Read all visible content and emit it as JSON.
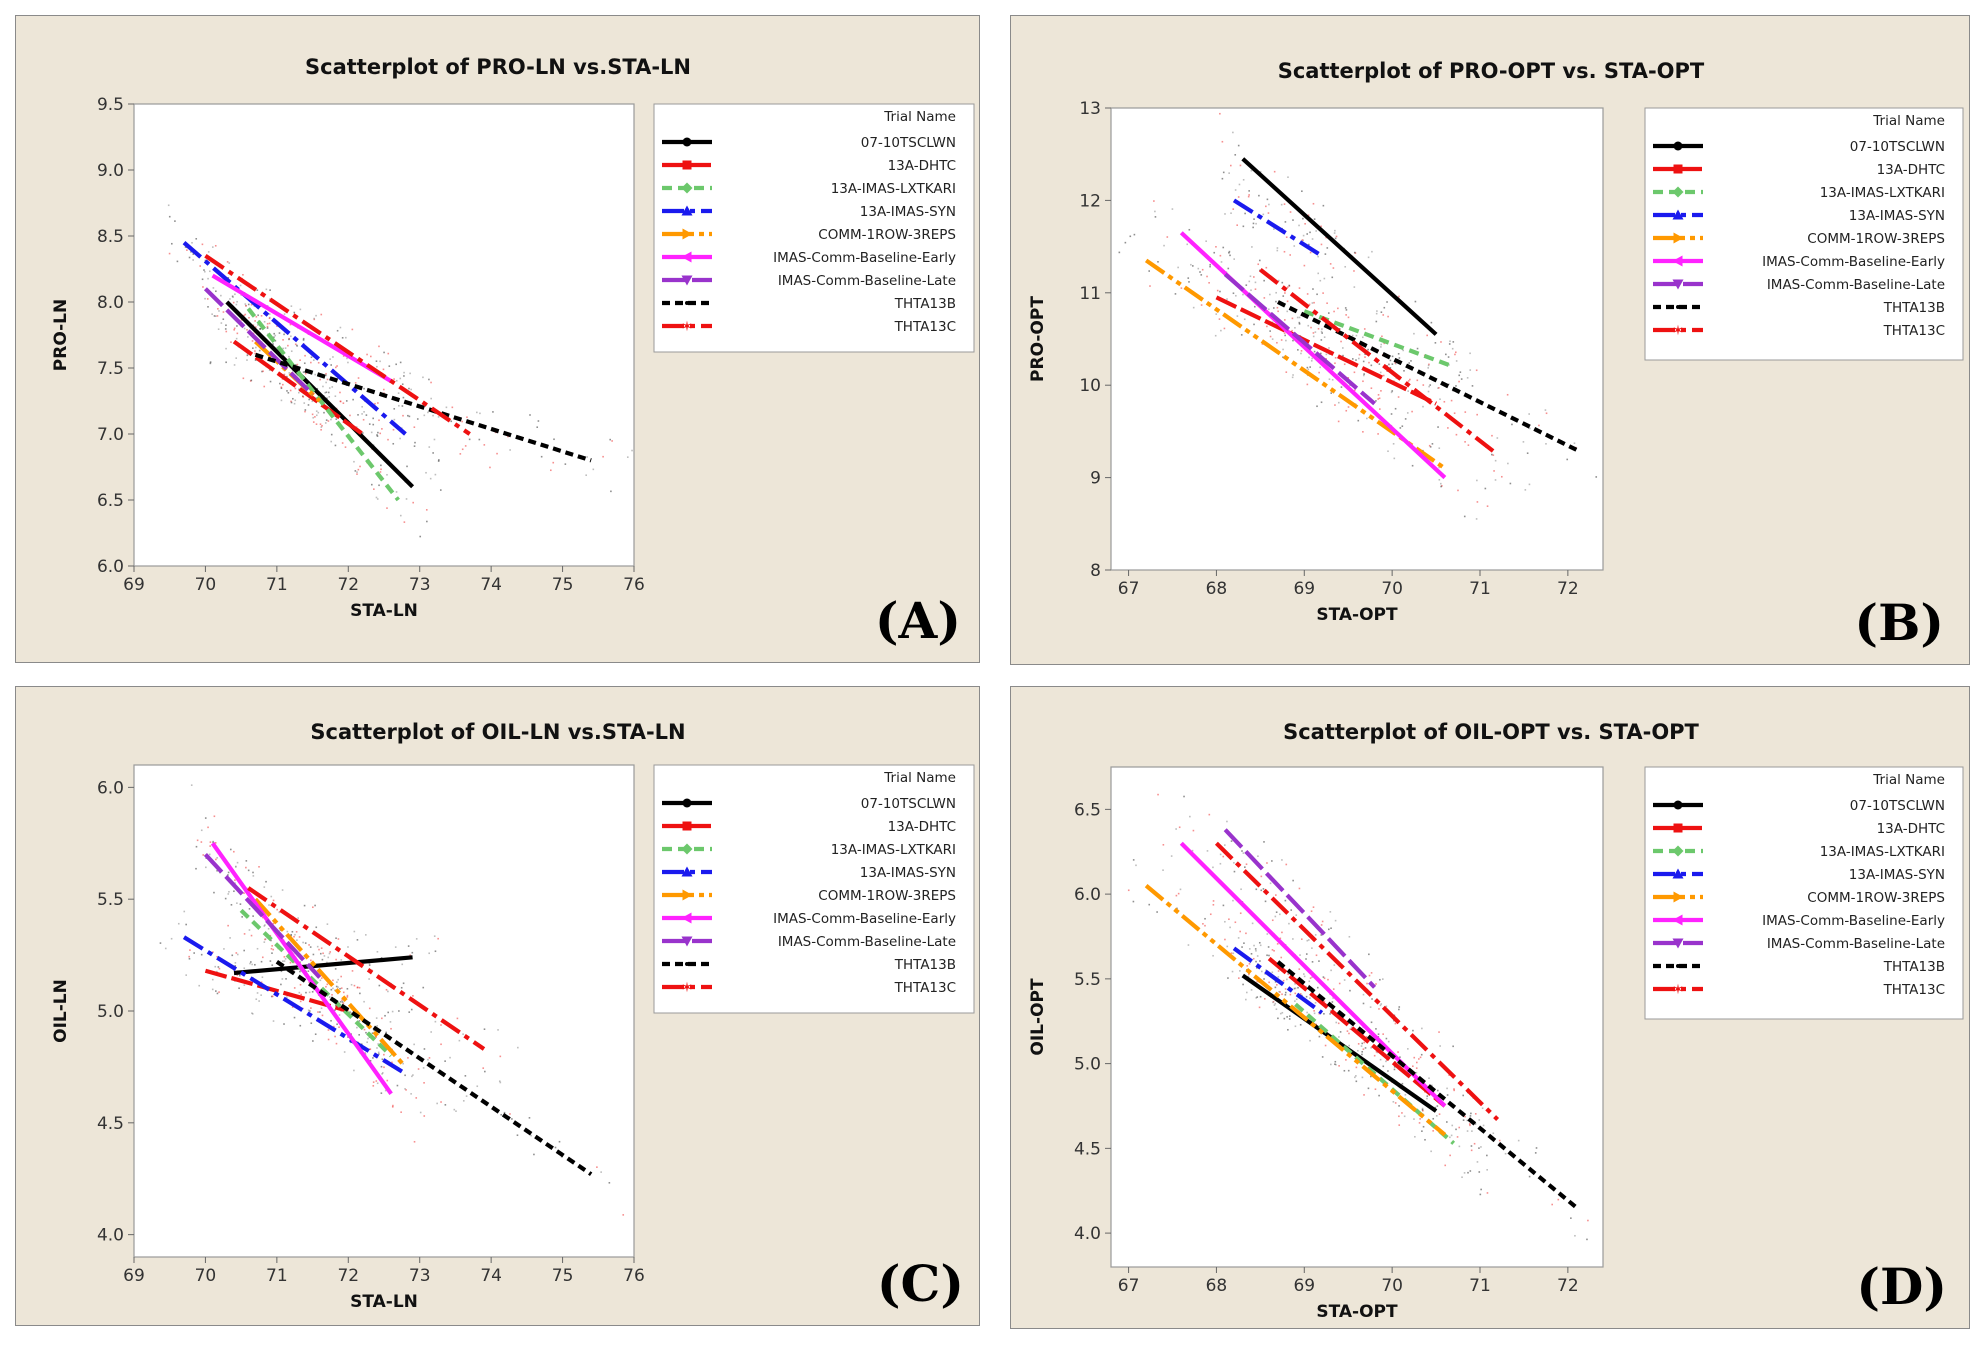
{
  "chart_data": [
    {
      "type": "scatter",
      "panel_label": "(A)",
      "title": "Scatterplot of PRO-LN vs.STA-LN",
      "xlabel": "STA-LN",
      "ylabel": "PRO-LN",
      "xlim": [
        69,
        76
      ],
      "ylim": [
        6.0,
        9.5
      ],
      "xticks": [
        69,
        70,
        71,
        72,
        73,
        74,
        75,
        76
      ],
      "yticks": [
        6.0,
        6.5,
        7.0,
        7.5,
        8.0,
        8.5,
        9.0,
        9.5
      ],
      "ytick_decimals": 1,
      "legend_title": "Trial Name",
      "series": [
        {
          "name": "07-10TSCLWN",
          "x": [
            70.3,
            72.9
          ],
          "y": [
            8.0,
            6.6
          ]
        },
        {
          "name": "13A-DHTC",
          "x": [
            70.4,
            72.2
          ],
          "y": [
            7.7,
            7.0
          ]
        },
        {
          "name": "13A-IMAS-LXTKARI",
          "x": [
            70.6,
            72.7
          ],
          "y": [
            7.95,
            6.5
          ]
        },
        {
          "name": "13A-IMAS-SYN",
          "x": [
            69.7,
            72.8
          ],
          "y": [
            8.45,
            7.0
          ]
        },
        {
          "name": "COMM-1ROW-3REPS",
          "x": [
            70.7,
            71.6
          ],
          "y": [
            7.7,
            7.25
          ]
        },
        {
          "name": "IMAS-Comm-Baseline-Early",
          "x": [
            70.1,
            72.6
          ],
          "y": [
            8.2,
            7.4
          ]
        },
        {
          "name": "IMAS-Comm-Baseline-Late",
          "x": [
            70.0,
            71.5
          ],
          "y": [
            8.1,
            7.3
          ]
        },
        {
          "name": "THTA13B",
          "x": [
            70.7,
            75.4
          ],
          "y": [
            7.6,
            6.8
          ]
        },
        {
          "name": "THTA13C",
          "x": [
            70.0,
            73.7
          ],
          "y": [
            8.35,
            7.0
          ]
        }
      ]
    },
    {
      "type": "scatter",
      "panel_label": "(B)",
      "title": "Scatterplot of PRO-OPT vs. STA-OPT",
      "xlabel": "STA-OPT",
      "ylabel": "PRO-OPT",
      "xlim": [
        66.8,
        72.4
      ],
      "ylim": [
        8,
        13
      ],
      "xticks": [
        67,
        68,
        69,
        70,
        71,
        72
      ],
      "yticks": [
        8,
        9,
        10,
        11,
        12,
        13
      ],
      "ytick_decimals": 0,
      "legend_title": "Trial Name",
      "series": [
        {
          "name": "07-10TSCLWN",
          "x": [
            68.3,
            70.5
          ],
          "y": [
            12.45,
            10.55
          ]
        },
        {
          "name": "13A-DHTC",
          "x": [
            68.0,
            70.5
          ],
          "y": [
            10.95,
            9.8
          ]
        },
        {
          "name": "13A-IMAS-LXTKARI",
          "x": [
            69.0,
            70.7
          ],
          "y": [
            10.8,
            10.2
          ]
        },
        {
          "name": "13A-IMAS-SYN",
          "x": [
            68.2,
            69.2
          ],
          "y": [
            12.0,
            11.4
          ]
        },
        {
          "name": "COMM-1ROW-3REPS",
          "x": [
            67.2,
            70.6
          ],
          "y": [
            11.35,
            9.1
          ]
        },
        {
          "name": "IMAS-Comm-Baseline-Early",
          "x": [
            67.6,
            70.6
          ],
          "y": [
            11.65,
            9.0
          ]
        },
        {
          "name": "IMAS-Comm-Baseline-Late",
          "x": [
            68.1,
            69.8
          ],
          "y": [
            11.2,
            9.8
          ]
        },
        {
          "name": "THTA13B",
          "x": [
            68.7,
            72.1
          ],
          "y": [
            10.9,
            9.3
          ]
        },
        {
          "name": "THTA13C",
          "x": [
            68.5,
            71.2
          ],
          "y": [
            11.25,
            9.25
          ]
        }
      ]
    },
    {
      "type": "scatter",
      "panel_label": "(C)",
      "title": "Scatterplot of OIL-LN vs.STA-LN",
      "xlabel": "STA-LN",
      "ylabel": "OIL-LN",
      "xlim": [
        69,
        76
      ],
      "ylim": [
        3.9,
        6.1
      ],
      "xticks": [
        69,
        70,
        71,
        72,
        73,
        74,
        75,
        76
      ],
      "yticks": [
        4.0,
        4.5,
        5.0,
        5.5,
        6.0
      ],
      "ytick_decimals": 1,
      "legend_title": "Trial Name",
      "series": [
        {
          "name": "07-10TSCLWN",
          "x": [
            70.4,
            72.9
          ],
          "y": [
            5.17,
            5.24
          ]
        },
        {
          "name": "13A-DHTC",
          "x": [
            70.0,
            72.0
          ],
          "y": [
            5.18,
            5.0
          ]
        },
        {
          "name": "13A-IMAS-LXTKARI",
          "x": [
            70.5,
            72.6
          ],
          "y": [
            5.45,
            4.8
          ]
        },
        {
          "name": "13A-IMAS-SYN",
          "x": [
            69.7,
            72.8
          ],
          "y": [
            5.33,
            4.72
          ]
        },
        {
          "name": "COMM-1ROW-3REPS",
          "x": [
            70.7,
            72.8
          ],
          "y": [
            5.5,
            4.75
          ]
        },
        {
          "name": "IMAS-Comm-Baseline-Early",
          "x": [
            70.1,
            72.6
          ],
          "y": [
            5.75,
            4.63
          ]
        },
        {
          "name": "IMAS-Comm-Baseline-Late",
          "x": [
            70.0,
            71.6
          ],
          "y": [
            5.7,
            5.15
          ]
        },
        {
          "name": "THTA13B",
          "x": [
            71.0,
            75.4
          ],
          "y": [
            5.22,
            4.27
          ]
        },
        {
          "name": "THTA13C",
          "x": [
            70.6,
            73.9
          ],
          "y": [
            5.55,
            4.83
          ]
        }
      ]
    },
    {
      "type": "scatter",
      "panel_label": "(D)",
      "title": "Scatterplot of OIL-OPT vs. STA-OPT",
      "xlabel": "STA-OPT",
      "ylabel": "OIL-OPT",
      "xlim": [
        66.8,
        72.4
      ],
      "ylim": [
        3.8,
        6.75
      ],
      "xticks": [
        67,
        68,
        69,
        70,
        71,
        72
      ],
      "yticks": [
        4.0,
        4.5,
        5.0,
        5.5,
        6.0,
        6.5
      ],
      "ytick_decimals": 1,
      "legend_title": "Trial Name",
      "series": [
        {
          "name": "07-10TSCLWN",
          "x": [
            68.3,
            70.5
          ],
          "y": [
            5.52,
            4.72
          ]
        },
        {
          "name": "13A-DHTC",
          "x": [
            68.6,
            70.6
          ],
          "y": [
            5.62,
            4.75
          ]
        },
        {
          "name": "13A-IMAS-LXTKARI",
          "x": [
            68.9,
            70.7
          ],
          "y": [
            5.35,
            4.53
          ]
        },
        {
          "name": "13A-IMAS-SYN",
          "x": [
            68.2,
            69.2
          ],
          "y": [
            5.68,
            5.3
          ]
        },
        {
          "name": "COMM-1ROW-3REPS",
          "x": [
            67.2,
            70.6
          ],
          "y": [
            6.05,
            4.58
          ]
        },
        {
          "name": "IMAS-Comm-Baseline-Early",
          "x": [
            67.6,
            70.6
          ],
          "y": [
            6.3,
            4.75
          ]
        },
        {
          "name": "IMAS-Comm-Baseline-Late",
          "x": [
            68.1,
            69.8
          ],
          "y": [
            6.38,
            5.45
          ]
        },
        {
          "name": "THTA13B",
          "x": [
            68.7,
            72.1
          ],
          "y": [
            5.6,
            4.15
          ]
        },
        {
          "name": "THTA13C",
          "x": [
            68.0,
            71.2
          ],
          "y": [
            6.3,
            4.67
          ]
        }
      ]
    }
  ],
  "legend_styles": [
    {
      "color": "#000000",
      "dash": "",
      "marker": "circle"
    },
    {
      "color": "#ee1111",
      "dash": "22 5",
      "marker": "square"
    },
    {
      "color": "#6cc86c",
      "dash": "10 6",
      "marker": "diamond"
    },
    {
      "color": "#1a1aee",
      "dash": "22 6 5 6",
      "marker": "triangle-up"
    },
    {
      "color": "#ff9900",
      "dash": "22 5 5 5 5 5",
      "marker": "triangle-right"
    },
    {
      "color": "#ff22ff",
      "dash": "",
      "marker": "triangle-left"
    },
    {
      "color": "#9933cc",
      "dash": "24 6",
      "marker": "triangle-down"
    },
    {
      "color": "#000000",
      "dash": "8 5",
      "marker": "dot"
    },
    {
      "color": "#ee1111",
      "dash": "22 6 5 6",
      "marker": "star"
    }
  ]
}
